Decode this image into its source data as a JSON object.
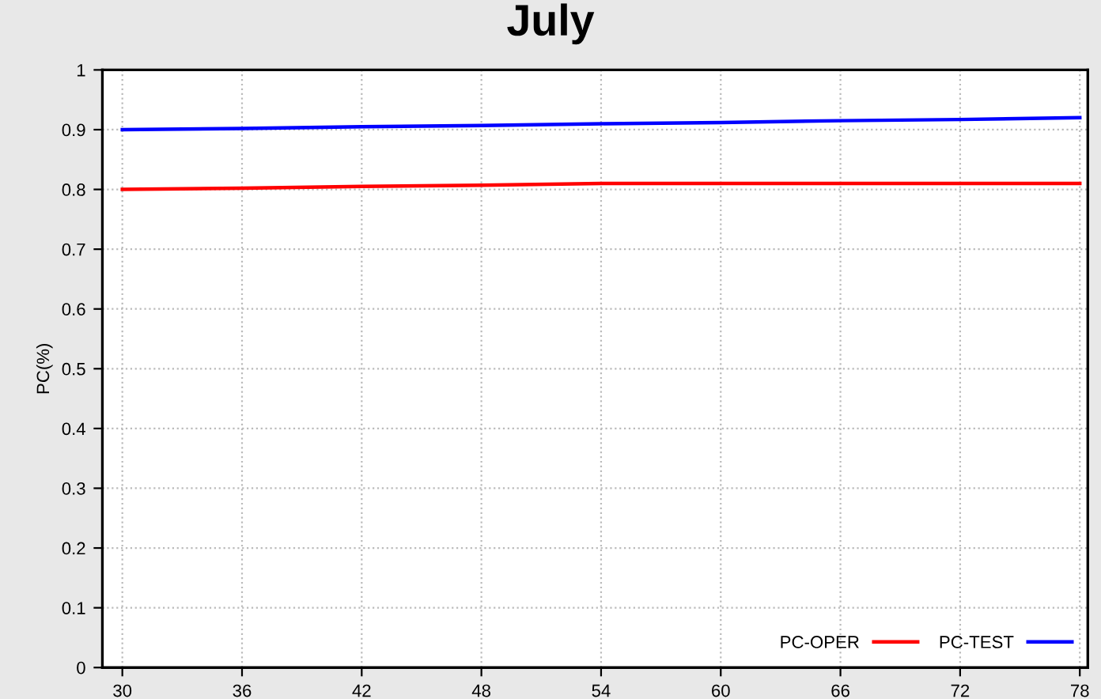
{
  "chart_data": {
    "type": "line",
    "title": "July",
    "ylabel": "PC(%)",
    "x": [
      30,
      36,
      42,
      48,
      54,
      60,
      66,
      72,
      78
    ],
    "series": [
      {
        "name": "PC-OPER",
        "color": "#ff0000",
        "values": [
          0.8,
          0.802,
          0.805,
          0.807,
          0.81,
          0.81,
          0.81,
          0.81,
          0.81
        ]
      },
      {
        "name": "PC-TEST",
        "color": "#0000ff",
        "values": [
          0.9,
          0.902,
          0.905,
          0.907,
          0.91,
          0.912,
          0.915,
          0.917,
          0.92
        ]
      }
    ],
    "xlim": [
      29,
      78.4
    ],
    "xticks": [
      30,
      36,
      42,
      48,
      54,
      60,
      66,
      72,
      78
    ],
    "ylim": [
      0,
      1
    ],
    "yticks": [
      0,
      0.1,
      0.2,
      0.3,
      0.4,
      0.5,
      0.6,
      0.7,
      0.8,
      0.9,
      1
    ],
    "grid": true,
    "legend": "bottom right",
    "marker": "none",
    "line_style": "solid"
  }
}
